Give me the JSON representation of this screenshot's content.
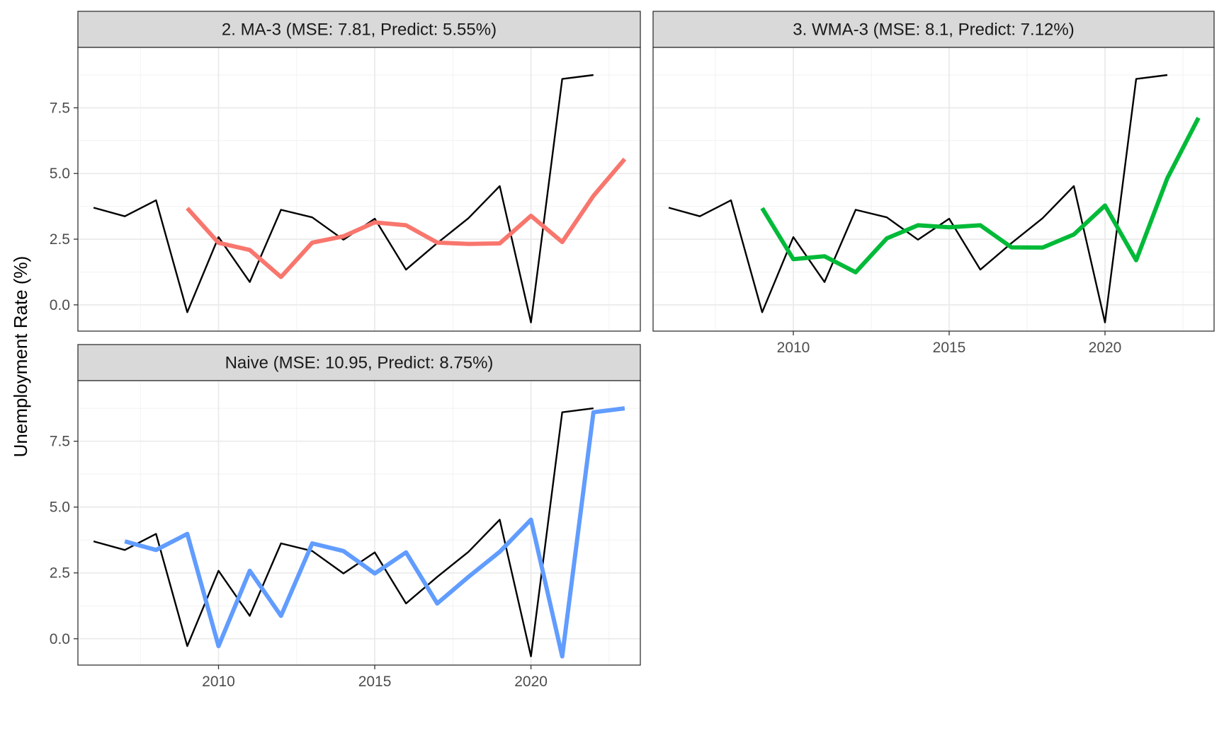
{
  "chart_data": {
    "type": "line",
    "ylabel": "Unemployment Rate (%)",
    "xlim": [
      2005.5,
      2023.5
    ],
    "ylim": [
      -1.0,
      9.8
    ],
    "x_ticks": [
      2010,
      2015,
      2020
    ],
    "y_ticks": [
      0.0,
      2.5,
      5.0,
      7.5
    ],
    "x_tick_labels": [
      "2010",
      "2015",
      "2020"
    ],
    "y_tick_labels": [
      "0.0",
      "2.5",
      "5.0",
      "7.5"
    ],
    "grid": true,
    "actual": {
      "color": "#000000",
      "x": [
        2006,
        2007,
        2008,
        2009,
        2010,
        2011,
        2012,
        2013,
        2014,
        2015,
        2016,
        2017,
        2018,
        2019,
        2020,
        2021,
        2022
      ],
      "values": [
        3.7,
        3.37,
        3.98,
        -0.28,
        2.58,
        0.87,
        3.62,
        3.33,
        2.48,
        3.28,
        1.34,
        2.35,
        3.3,
        4.52,
        -0.67,
        8.6,
        8.75
      ]
    },
    "panels": [
      {
        "title": "2. MA-3 (MSE: 7.81, Predict: 5.55%)",
        "color": "#F8766D",
        "x": [
          2009,
          2010,
          2011,
          2012,
          2013,
          2014,
          2015,
          2016,
          2017,
          2018,
          2019,
          2020,
          2021,
          2022,
          2023
        ],
        "values": [
          3.68,
          2.36,
          2.09,
          1.06,
          2.37,
          2.61,
          3.14,
          3.03,
          2.37,
          2.32,
          2.34,
          3.39,
          2.39,
          4.15,
          5.55
        ]
      },
      {
        "title": "3. WMA-3 (MSE: 8.1, Predict: 7.12%)",
        "color": "#00BA38",
        "x": [
          2009,
          2010,
          2011,
          2012,
          2013,
          2014,
          2015,
          2016,
          2017,
          2018,
          2019,
          2020,
          2021,
          2022,
          2023
        ],
        "values": [
          3.68,
          1.74,
          1.85,
          1.24,
          2.53,
          3.03,
          2.95,
          3.03,
          2.19,
          2.18,
          2.68,
          3.78,
          1.7,
          4.82,
          7.12
        ]
      },
      {
        "title": "Naive (MSE: 10.95, Predict: 8.75%)",
        "color": "#619CFF",
        "x": [
          2007,
          2008,
          2009,
          2010,
          2011,
          2012,
          2013,
          2014,
          2015,
          2016,
          2017,
          2018,
          2019,
          2020,
          2021,
          2022,
          2023
        ],
        "values": [
          3.7,
          3.37,
          3.98,
          -0.28,
          2.58,
          0.87,
          3.62,
          3.33,
          2.48,
          3.28,
          1.34,
          2.35,
          3.3,
          4.52,
          -0.67,
          8.6,
          8.75
        ]
      }
    ]
  }
}
